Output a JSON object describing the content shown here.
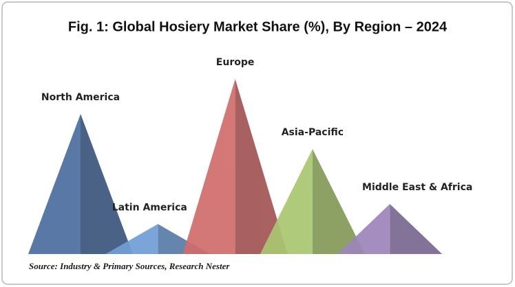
{
  "chart_data": {
    "type": "peak",
    "title": "Fig. 1: Global Hosiery Market Share (%), By Region – 2024",
    "categories": [
      "North America",
      "Latin America",
      "Europe",
      "Asia-Pacific",
      "Middle East & Africa"
    ],
    "values": [
      28,
      6,
      35,
      21,
      10
    ],
    "colors": [
      "#4d6e9f",
      "#729fd6",
      "#d06d6d",
      "#abc672",
      "#9d86bb"
    ],
    "source": "Source: Industry & Primary Sources, Research Nester"
  }
}
